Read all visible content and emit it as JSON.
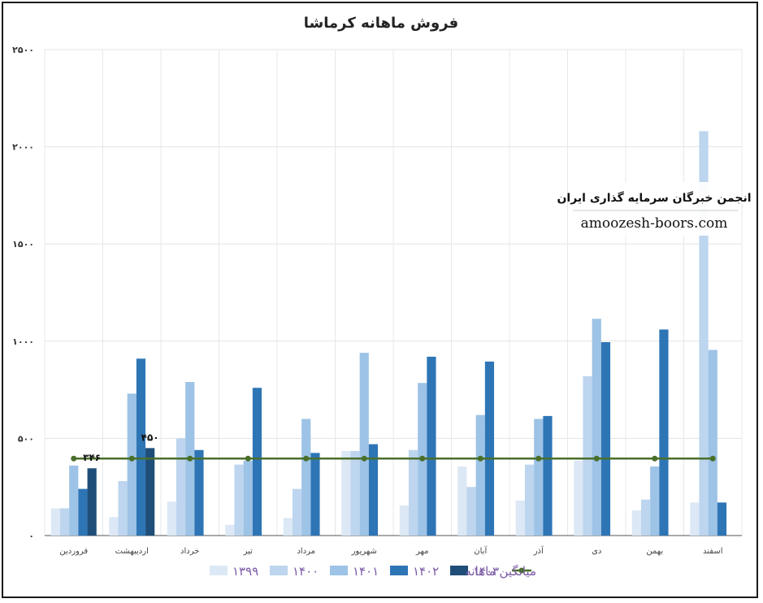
{
  "chart_data": {
    "type": "bar",
    "title": "فروش  ماهانه کرماشا",
    "ylim": [
      0,
      2500
    ],
    "y_ticks": [
      0,
      500,
      1000,
      1500,
      2000,
      2500
    ],
    "y_tick_labels": [
      "۰",
      "۵۰۰",
      "۱۰۰۰",
      "۱۵۰۰",
      "۲۰۰۰",
      "۲۵۰۰"
    ],
    "grid": true,
    "legend_position": "bottom",
    "categories": [
      "فروردین",
      "اردیبهشت",
      "خرداد",
      "تیر",
      "مرداد",
      "شهریور",
      "مهر",
      "آبان",
      "آذر",
      "دی",
      "بهمن",
      "اسفند"
    ],
    "series": [
      {
        "name": "۱۳۹۹",
        "color": "#dce8f5",
        "values": [
          140,
          95,
          175,
          55,
          90,
          435,
          155,
          355,
          180,
          385,
          130,
          170
        ]
      },
      {
        "name": "۱۴۰۰",
        "color": "#bdd5ee",
        "values": [
          140,
          280,
          500,
          365,
          240,
          435,
          440,
          250,
          365,
          820,
          185,
          2080
        ]
      },
      {
        "name": "۱۴۰۱",
        "color": "#9dc3e6",
        "values": [
          360,
          730,
          790,
          385,
          600,
          940,
          785,
          620,
          600,
          1115,
          355,
          955
        ]
      },
      {
        "name": "۱۴۰۲",
        "color": "#2e75b6",
        "values": [
          240,
          910,
          440,
          760,
          425,
          470,
          920,
          895,
          615,
          995,
          1060,
          170
        ]
      },
      {
        "name": "۱۴۰۳",
        "color": "#1f4e79",
        "values": [
          346,
          450,
          null,
          null,
          null,
          null,
          null,
          null,
          null,
          null,
          null,
          null
        ]
      }
    ],
    "average_line": {
      "name": "میانگین ماهانه",
      "color": "#4a6f2a",
      "value": 396
    },
    "data_labels": [
      {
        "category": "فروردین",
        "text": "۳۴۶"
      },
      {
        "category": "اردیبهشت",
        "text": "۴۵۰"
      }
    ]
  },
  "watermark": {
    "title": "انجمن خبرگان سرمایه گذاری ایران",
    "url": "amoozesh-boors.com"
  }
}
